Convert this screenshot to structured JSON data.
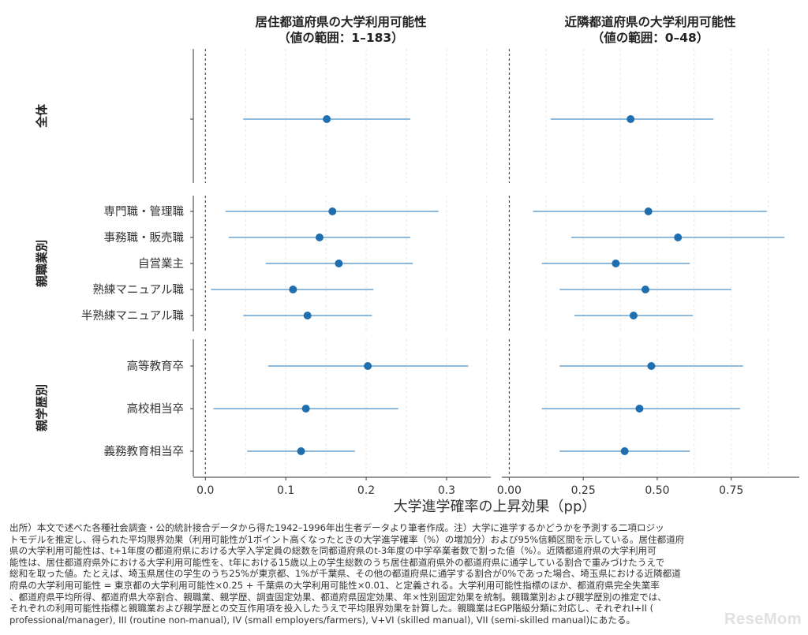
{
  "chart_data": {
    "type": "scatter",
    "subtype": "dot-with-confidence-interval",
    "xlabel": "大学進学確率の上昇効果（pp）",
    "panels": [
      {
        "id": "residence",
        "title_line1": "居住都道府県の大学利用可能性",
        "title_line2": "（値の範囲：1–183）",
        "xlim": [
          -0.015,
          0.355
        ],
        "ticks": [
          0,
          0.1,
          0.2,
          0.3
        ],
        "tick_labels": [
          "0.0",
          "0.1",
          "0.2",
          "0.3"
        ]
      },
      {
        "id": "neighbor",
        "title_line1": "近隣都道府県の大学利用可能性",
        "title_line2": "（値の範囲：0–48）",
        "xlim": [
          -0.025,
          0.98
        ],
        "ticks": [
          0,
          0.25,
          0.5,
          0.75
        ],
        "tick_labels": [
          "0.00",
          "0.25",
          "0.50",
          "0.75"
        ]
      }
    ],
    "groups": [
      {
        "facet_label": "全体",
        "rows": [
          {
            "label": "",
            "panels": [
              {
                "est": 0.151,
                "lo": 0.047,
                "hi": 0.255
              },
              {
                "est": 0.41,
                "lo": 0.14,
                "hi": 0.69
              }
            ]
          }
        ]
      },
      {
        "facet_label": "親職業別",
        "rows": [
          {
            "label": "専門職・管理職",
            "panels": [
              {
                "est": 0.158,
                "lo": 0.025,
                "hi": 0.29
              },
              {
                "est": 0.47,
                "lo": 0.08,
                "hi": 0.87
              }
            ]
          },
          {
            "label": "事務職・販売職",
            "panels": [
              {
                "est": 0.142,
                "lo": 0.029,
                "hi": 0.255
              },
              {
                "est": 0.57,
                "lo": 0.21,
                "hi": 0.93
              }
            ]
          },
          {
            "label": "自営業主",
            "panels": [
              {
                "est": 0.166,
                "lo": 0.075,
                "hi": 0.258
              },
              {
                "est": 0.36,
                "lo": 0.11,
                "hi": 0.61
              }
            ]
          },
          {
            "label": "熟練マニュアル職",
            "panels": [
              {
                "est": 0.109,
                "lo": 0.007,
                "hi": 0.209
              },
              {
                "est": 0.46,
                "lo": 0.17,
                "hi": 0.75
              }
            ]
          },
          {
            "label": "半熟練マニュアル職",
            "panels": [
              {
                "est": 0.127,
                "lo": 0.047,
                "hi": 0.207
              },
              {
                "est": 0.42,
                "lo": 0.22,
                "hi": 0.62
              }
            ]
          }
        ]
      },
      {
        "facet_label": "親学歴別",
        "rows": [
          {
            "label": "高等教育卒",
            "panels": [
              {
                "est": 0.202,
                "lo": 0.078,
                "hi": 0.327
              },
              {
                "est": 0.48,
                "lo": 0.17,
                "hi": 0.79
              }
            ]
          },
          {
            "label": "高校相当卒",
            "panels": [
              {
                "est": 0.125,
                "lo": 0.01,
                "hi": 0.24
              },
              {
                "est": 0.44,
                "lo": 0.11,
                "hi": 0.78
              }
            ]
          },
          {
            "label": "義務教育相当卒",
            "panels": [
              {
                "est": 0.119,
                "lo": 0.052,
                "hi": 0.186
              },
              {
                "est": 0.39,
                "lo": 0.17,
                "hi": 0.61
              }
            ]
          }
        ]
      }
    ],
    "colors": {
      "point": "#1f6fb0",
      "ci": "#4a90c9",
      "refline": "#333333",
      "grid": "#e6e6e6"
    },
    "grid": true
  },
  "note_lines": [
    "出所）本文で述べた各種社会調査・公的統計接合データから得た1942–1996年出生者データより筆者作成。注）大学に進学するかどうかを予測する二項ロジッ",
    "トモデルを推定し、得られた平均限界効果（利用可能性が1ポイント高くなったときの大学進学確率（%）の増加分）および95%信頼区間を示している。居住都道府",
    "県の大学利用可能性は、t+1年度の都道府県における大学入学定員の総数を同都道府県のt-3年度の中学卒業者数で割った値（%）。近隣都道府県の大学利用可",
    "能性は、居住都道府県外における大学利用可能性を、t年における15歳以上の学生総数のうち居住都道府県外の都道府県に通学している割合で重みづけたうえで",
    "総和を取った値。たとえば、埼玉県居住の学生のうち25%が東京都、1%が千葉県、その他の都道府県に通学する割合が0%であった場合、埼玉県における近隣都道",
    "府県の大学利用可能性 = 東京都の大学利用可能性×0.25 + 千葉県の大学利用可能性×0.01、と定義される。大学利用可能性指標のほか、都道府県完全失業率",
    "、都道府県平均所得、都道府県大卒割合、親職業、親学歴、調査固定効果、都道府県固定効果、年×性別固定効果を統制。親職業別および親学歴別の推定では、",
    "それぞれの利用可能性指標と親職業および親学歴との交互作用項を投入したうえで平均限界効果を計算した。親職業はEGP階級分類に対応し、それぞれI+II (",
    "professional/manager), III (routine non-manual), IV (small employers/farmers), V+VI (skilled manual), VII (semi-skilled manual)にあたる。"
  ],
  "watermark": "ReseMom"
}
